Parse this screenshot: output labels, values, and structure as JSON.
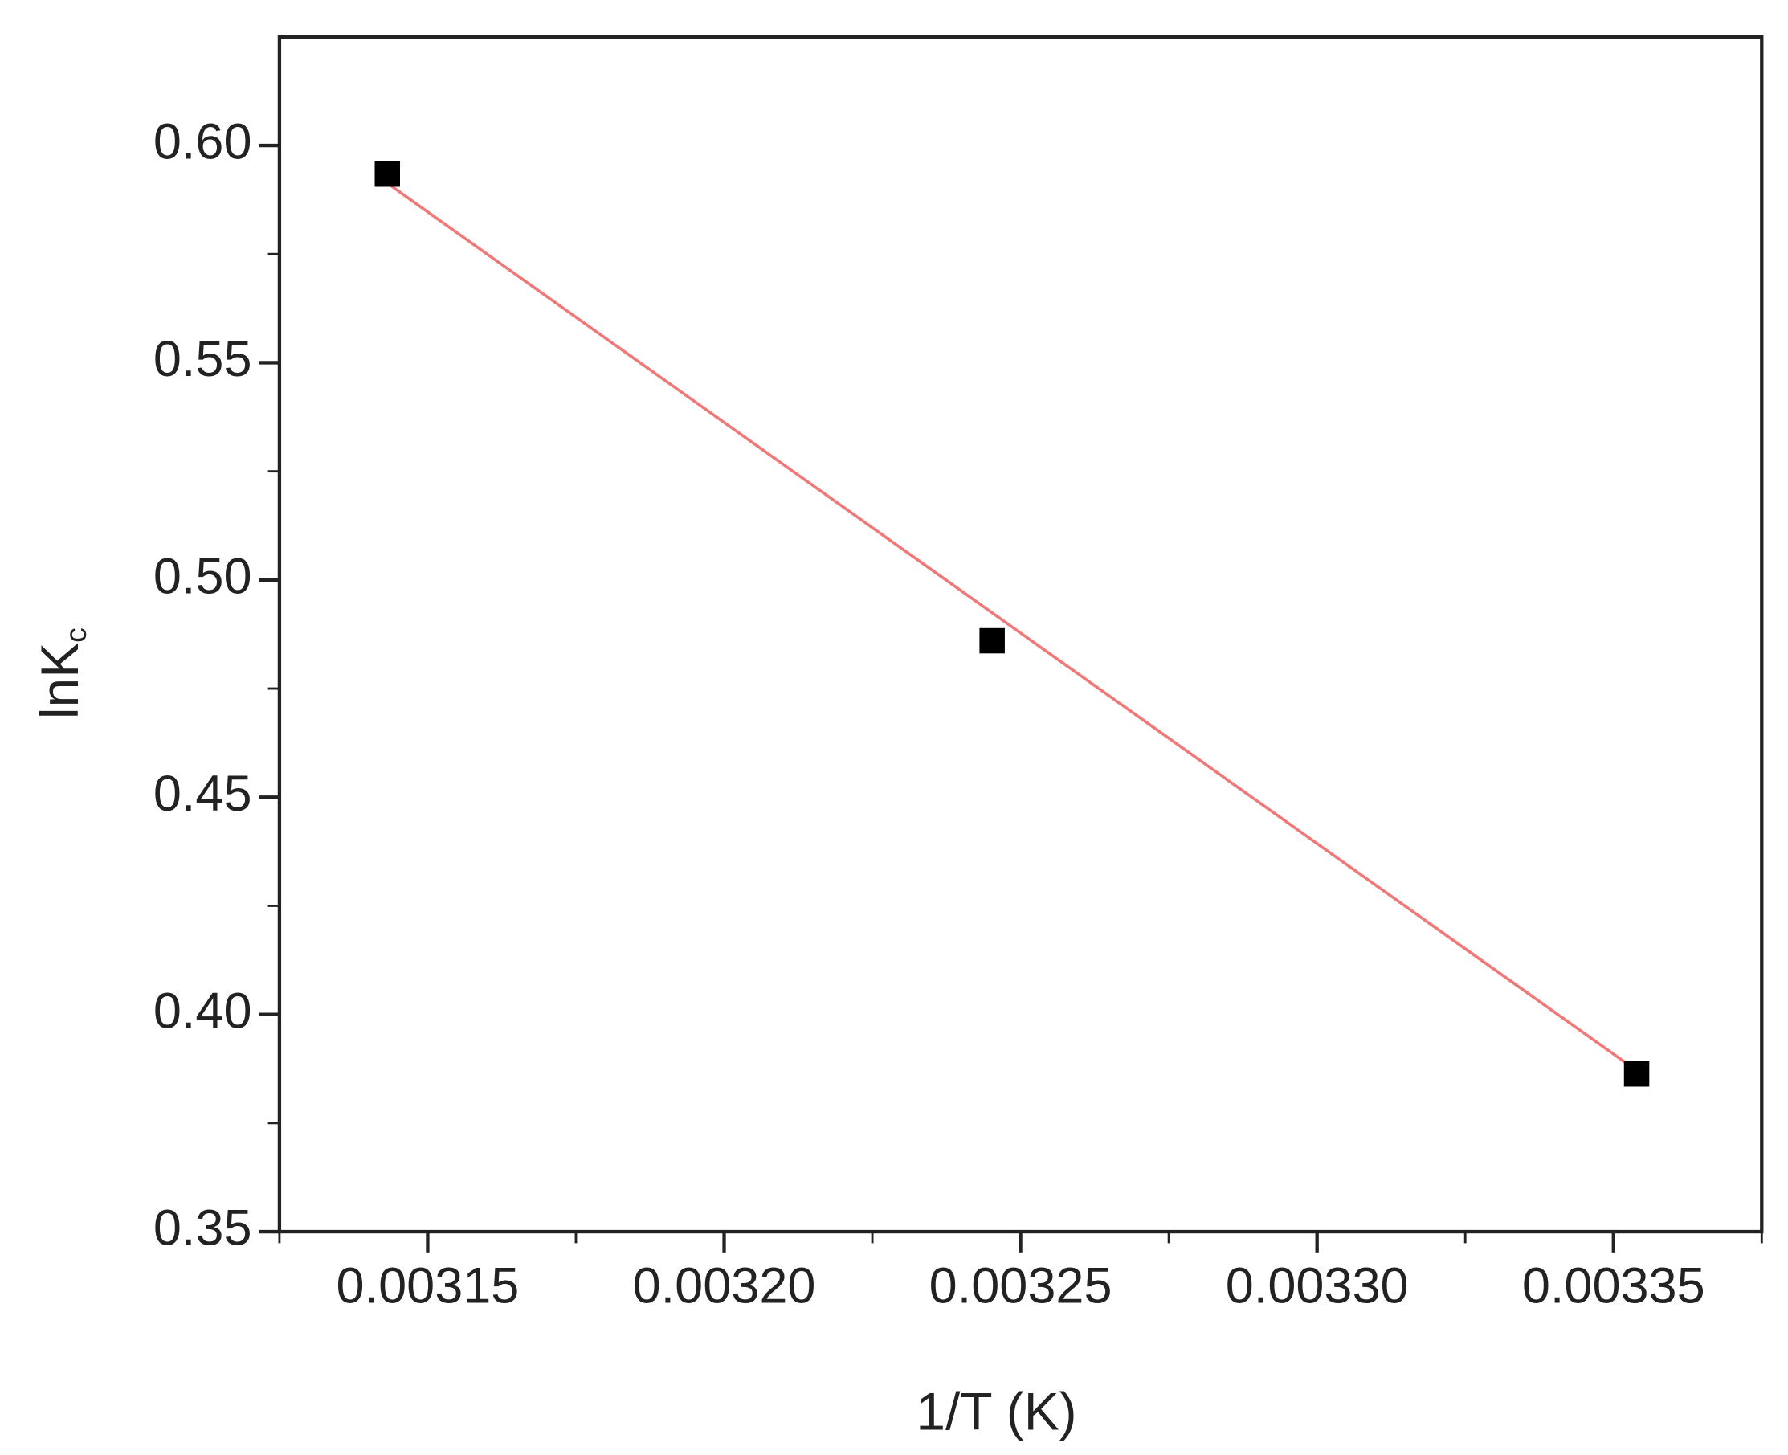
{
  "chart_data": {
    "type": "scatter",
    "xlabel": "1/T (K)",
    "ylabel": "lnK",
    "ylabel_subscript": "c",
    "x": [
      0.0031432,
      0.0032452,
      0.0033539
    ],
    "values": [
      0.5934,
      0.486,
      0.3863
    ],
    "color": "#000000",
    "fit": {
      "x": [
        0.0031432,
        0.0033539
      ],
      "values": [
        0.5913,
        0.3871
      ],
      "color": "#f07878"
    },
    "xlim": [
      0.003125,
      0.003375
    ],
    "ylim": [
      0.35,
      0.625
    ],
    "xticks": [
      0.00315,
      {
        "value": 0.0032,
        "label": "0.00320"
      },
      0.00325,
      {
        "value": 0.0033,
        "label": "0.00330"
      },
      0.00335
    ],
    "xminorticks": [
      0.003125,
      0.003175,
      0.003225,
      0.003275,
      0.003325,
      0.003375
    ],
    "yticks": [
      {
        "value": 0.35,
        "label": "0.35"
      },
      {
        "value": 0.4,
        "label": "0.40"
      },
      0.45,
      {
        "value": 0.5,
        "label": "0.50"
      },
      0.55,
      {
        "value": 0.6,
        "label": "0.60"
      }
    ],
    "yminorticks": [
      0.375,
      0.425,
      0.475,
      0.525,
      0.575
    ],
    "grid": false
  }
}
